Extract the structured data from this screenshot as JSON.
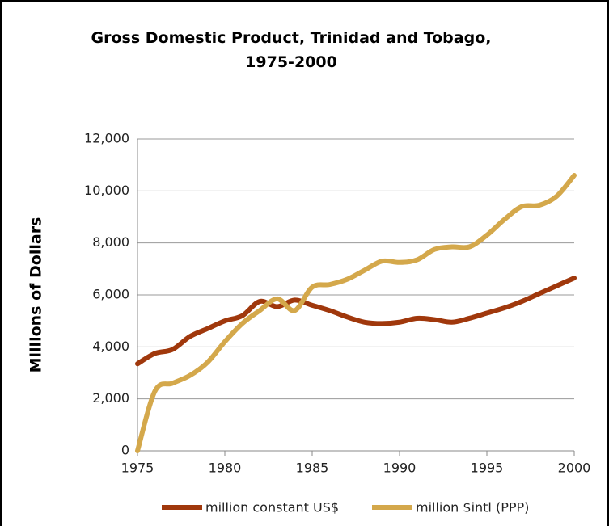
{
  "chart_data": {
    "type": "line",
    "title": "Gross Domestic Product, Trinidad and Tobago, 1975-2000",
    "y_label": "Millions of Dollars",
    "x": [
      1975,
      1976,
      1977,
      1978,
      1979,
      1980,
      1981,
      1982,
      1983,
      1984,
      1985,
      1986,
      1987,
      1988,
      1989,
      1990,
      1991,
      1992,
      1993,
      1994,
      1995,
      1996,
      1997,
      1998,
      1999,
      2000
    ],
    "series": [
      {
        "name": "million constant US$",
        "color": "#a0380c",
        "values": [
          3350,
          3750,
          3900,
          4400,
          4700,
          5000,
          5200,
          5750,
          5550,
          5800,
          5600,
          5400,
          5150,
          4950,
          4900,
          4950,
          5100,
          5050,
          4950,
          5100,
          5300,
          5500,
          5750,
          6050,
          6350,
          6650
        ]
      },
      {
        "name": "million $intl (PPP)",
        "color": "#d4a84b",
        "values": [
          0,
          2300,
          2600,
          2900,
          3400,
          4200,
          4900,
          5400,
          5850,
          5400,
          6300,
          6400,
          6600,
          6950,
          7300,
          7250,
          7350,
          7750,
          7850,
          7850,
          8300,
          8900,
          9400,
          9450,
          9800,
          10600
        ]
      }
    ],
    "xlim": [
      1975,
      2000
    ],
    "xticks": [
      1975,
      1980,
      1985,
      1990,
      1995,
      2000
    ],
    "ylim": [
      0,
      12000
    ],
    "yticks": [
      0,
      {
        "value": 2000,
        "label": "2,000"
      },
      {
        "value": 4000,
        "label": "4,000"
      },
      {
        "value": 6000,
        "label": "6,000"
      },
      {
        "value": 8000,
        "label": "8,000"
      },
      {
        "value": 10000,
        "label": "10,000"
      },
      {
        "value": 12000,
        "label": "12,000"
      }
    ],
    "grid": true,
    "legend": "bottom"
  }
}
